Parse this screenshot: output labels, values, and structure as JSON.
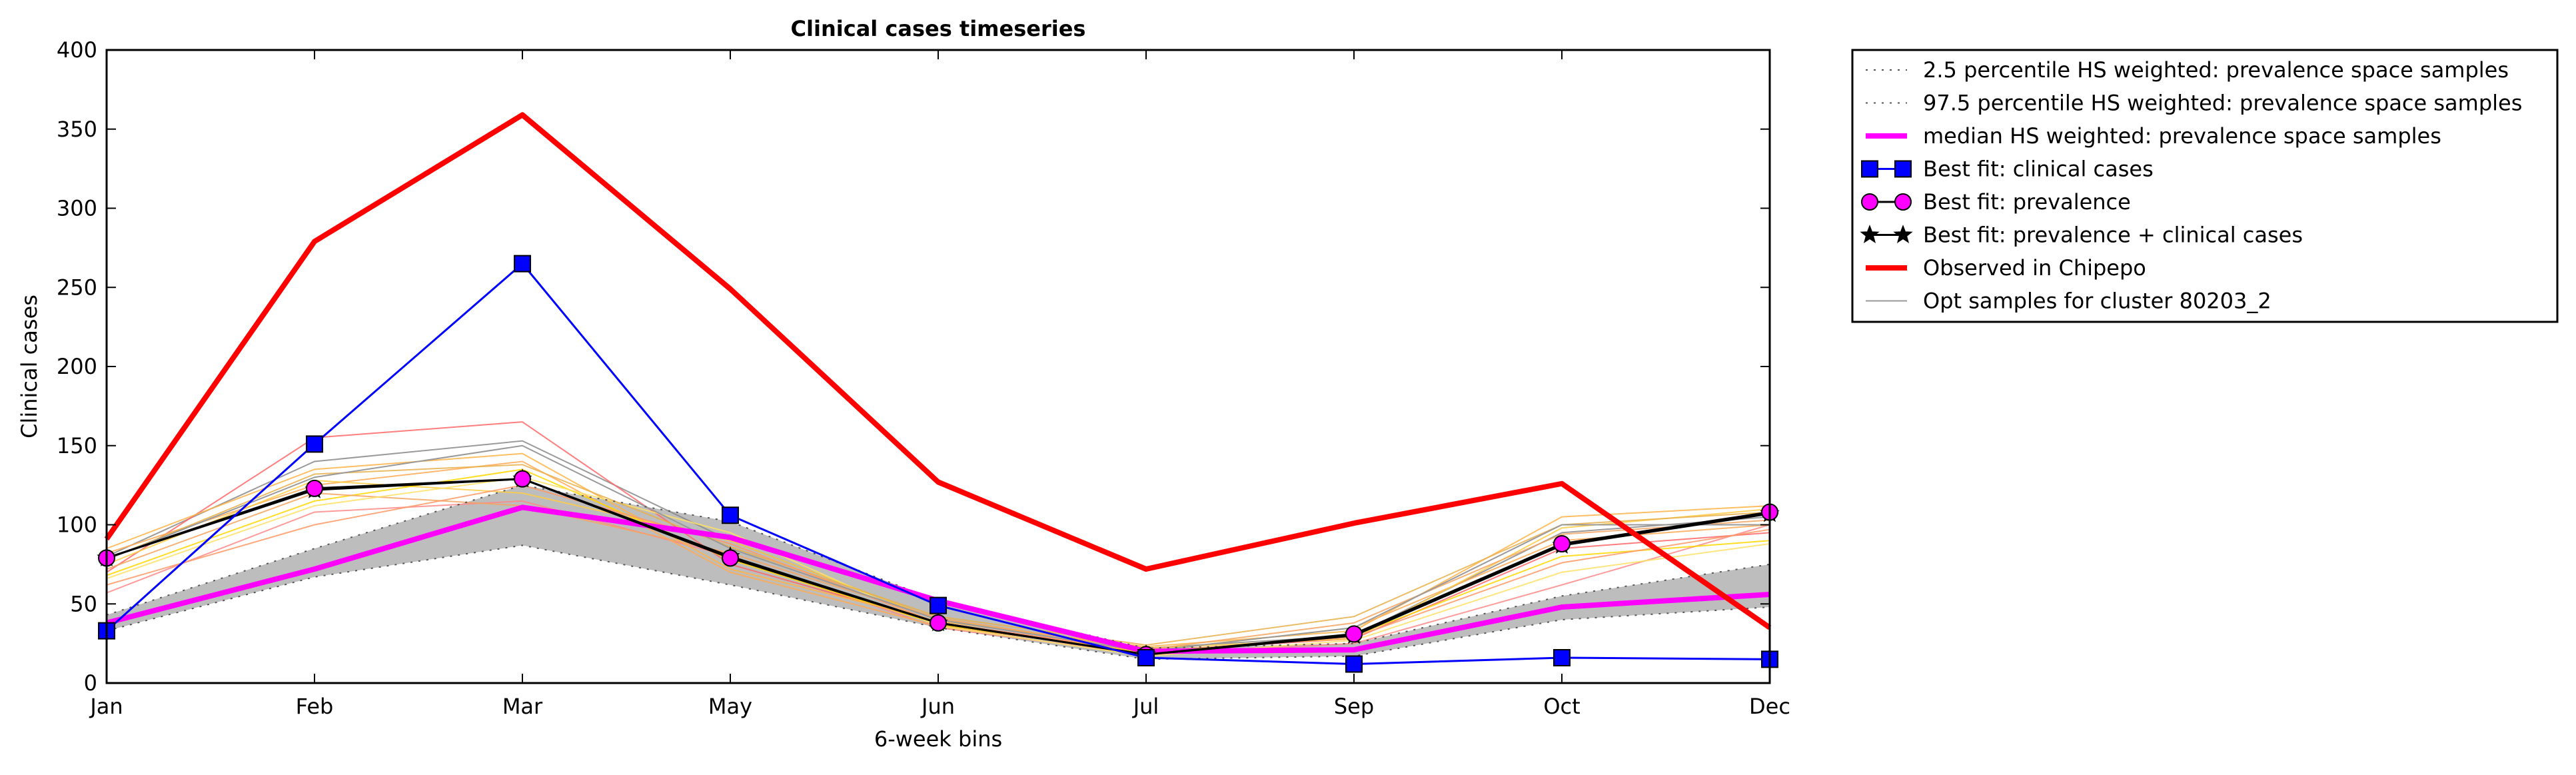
{
  "chart_data": {
    "type": "line",
    "title": "Clinical cases timeseries",
    "xlabel": "6-week bins",
    "ylabel": "Clinical cases",
    "categories": [
      "Jan",
      "Feb",
      "Mar",
      "May",
      "Jun",
      "Jul",
      "Sep",
      "Oct",
      "Dec"
    ],
    "ylim": [
      0,
      400
    ],
    "yticks": [
      0,
      50,
      100,
      150,
      200,
      250,
      300,
      350,
      400
    ],
    "grid": false,
    "legend_position": "outside-right-top",
    "band": {
      "lower": [
        33,
        67,
        87,
        62,
        35,
        15,
        17,
        40,
        48
      ],
      "upper": [
        43,
        85,
        125,
        102,
        52,
        22,
        25,
        55,
        75
      ],
      "color": "#bdbdbd"
    },
    "series": [
      {
        "name": "2.5 percentile HS weighted: prevalence space samples",
        "values": [
          33,
          67,
          87,
          62,
          35,
          15,
          17,
          40,
          48
        ],
        "color": "#555555",
        "style": "dotted",
        "width": 2,
        "marker": "none"
      },
      {
        "name": "97.5 percentile HS weighted: prevalence space samples",
        "values": [
          43,
          85,
          125,
          102,
          52,
          22,
          25,
          55,
          75
        ],
        "color": "#555555",
        "style": "dotted",
        "width": 2,
        "marker": "none"
      },
      {
        "name": "median HS weighted: prevalence space samples",
        "values": [
          38,
          72,
          111,
          92,
          52,
          20,
          21,
          48,
          56
        ],
        "color": "#ff00ff",
        "style": "solid",
        "width": 8,
        "marker": "none"
      },
      {
        "name": "Best fit: clinical cases",
        "values": [
          33,
          151,
          265,
          106,
          49,
          16,
          12,
          16,
          15
        ],
        "color": "#0000ff",
        "style": "solid",
        "width": 3,
        "marker": "square",
        "marker_fill": "#0000ff"
      },
      {
        "name": "Best fit: prevalence",
        "values": [
          79,
          123,
          129,
          79,
          38,
          18,
          31,
          88,
          108
        ],
        "color": "#000000",
        "style": "solid",
        "width": 3,
        "marker": "circle",
        "marker_fill": "#ff00ff"
      },
      {
        "name": "Best fit: prevalence + clinical cases",
        "values": [
          79,
          122,
          129,
          80,
          38,
          18,
          30,
          87,
          107
        ],
        "color": "#000000",
        "style": "solid",
        "width": 3,
        "marker": "star",
        "marker_fill": "#000000"
      },
      {
        "name": "Observed in Chipepo",
        "values": [
          91,
          279,
          359,
          249,
          127,
          72,
          101,
          126,
          35
        ],
        "color": "#ff0000",
        "style": "solid",
        "width": 8,
        "marker": "none"
      },
      {
        "name": "Opt samples for cluster 80203_2",
        "values": [
          78,
          130,
          150,
          85,
          40,
          20,
          35,
          100,
          100
        ],
        "color": "#999999",
        "style": "solid",
        "width": 2,
        "marker": "none"
      }
    ],
    "samples": [
      {
        "values": [
          80,
          140,
          153,
          90,
          40,
          22,
          30,
          95,
          105
        ],
        "color": "#888888"
      },
      {
        "values": [
          70,
          155,
          165,
          75,
          38,
          20,
          28,
          85,
          95
        ],
        "color": "#ff6666"
      },
      {
        "values": [
          57,
          108,
          115,
          80,
          35,
          18,
          25,
          62,
          100
        ],
        "color": "#ff8888"
      },
      {
        "values": [
          82,
          125,
          140,
          70,
          36,
          20,
          35,
          90,
          100
        ],
        "color": "#ffaa55"
      },
      {
        "values": [
          75,
          128,
          120,
          90,
          40,
          22,
          28,
          98,
          110
        ],
        "color": "#ffcc44"
      },
      {
        "values": [
          68,
          115,
          135,
          78,
          37,
          19,
          30,
          80,
          90
        ],
        "color": "#ffd700"
      },
      {
        "values": [
          85,
          135,
          145,
          72,
          39,
          23,
          33,
          105,
          112
        ],
        "color": "#ffb347"
      },
      {
        "values": [
          72,
          120,
          112,
          82,
          41,
          21,
          38,
          94,
          103
        ],
        "color": "#f4a460"
      },
      {
        "values": [
          66,
          112,
          130,
          95,
          36,
          17,
          27,
          70,
          88
        ],
        "color": "#ffe066"
      },
      {
        "values": [
          78,
          132,
          138,
          86,
          42,
          24,
          42,
          100,
          108
        ],
        "color": "#e8b04a"
      },
      {
        "values": [
          62,
          100,
          125,
          88,
          38,
          20,
          29,
          76,
          97
        ],
        "color": "#ff9966"
      }
    ]
  }
}
